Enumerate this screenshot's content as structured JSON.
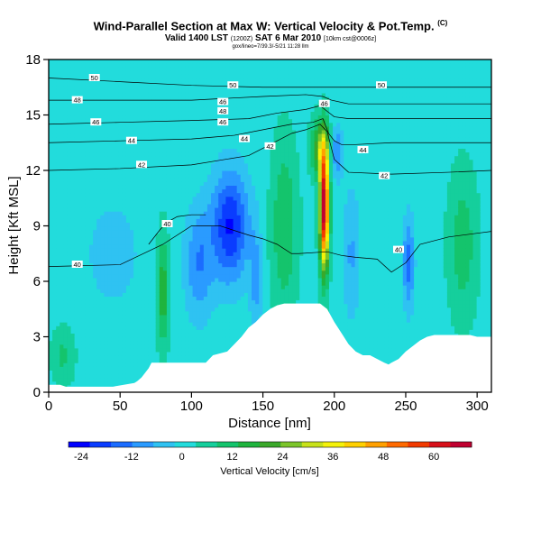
{
  "header": {
    "title": "Wind-Parallel Section at Max W: Vertical Velocity & Pot.Temp.",
    "title_mark": "(C)",
    "subtitle": "Valid 1400 LST",
    "subtitle_small": "(1200Z)",
    "subtitle_date": "SAT 6 Mar 2010",
    "subtitle_run": "[10km cst@0006z]",
    "info_line": "gox/lineo=7/39.3/-5/21 11:28 llm"
  },
  "chart_data": {
    "type": "heatmap",
    "title": "Wind-Parallel Section at Max W: Vertical Velocity & Pot.Temp.",
    "xlabel": "Distance [nm]",
    "ylabel": "Height [Kft MSL]",
    "xlim": [
      0,
      310
    ],
    "ylim": [
      0,
      18
    ],
    "x_ticks": [
      0,
      50,
      100,
      150,
      200,
      250,
      300
    ],
    "y_ticks": [
      0,
      3,
      6,
      9,
      12,
      15,
      18
    ],
    "grid": false,
    "colorbar": {
      "label": "Vertical Velocity [cm/s]",
      "placement": "bottom",
      "min": -27,
      "max": 69,
      "tick_values": [
        -24,
        -12,
        0,
        12,
        24,
        36,
        48,
        60
      ],
      "colors": [
        "#0000ff",
        "#0a3cff",
        "#1b6cff",
        "#2a9bff",
        "#2fc2f2",
        "#22dcdc",
        "#15cf9c",
        "#14c46c",
        "#1fb43e",
        "#3aa82a",
        "#7cc52a",
        "#c8e21a",
        "#f5f20a",
        "#ffd000",
        "#ffa000",
        "#ff6a00",
        "#f23a00",
        "#d8101a",
        "#c00030"
      ]
    },
    "terrain_profile": {
      "x": [
        0,
        8,
        12,
        20,
        25,
        40,
        45,
        60,
        62,
        65,
        68,
        70,
        72,
        90,
        100,
        110,
        115,
        125,
        130,
        135,
        140,
        145,
        150,
        155,
        160,
        165,
        170,
        175,
        180,
        185,
        190,
        195,
        200,
        205,
        210,
        215,
        220,
        225,
        230,
        235,
        238,
        240,
        245,
        250,
        255,
        260,
        265,
        270,
        275,
        280,
        285,
        290,
        295,
        300,
        305,
        310
      ],
      "height": [
        0.4,
        0.4,
        0.3,
        0.3,
        0.3,
        0.3,
        0.3,
        0.5,
        0.6,
        0.8,
        1.1,
        1.3,
        1.6,
        1.6,
        1.6,
        1.6,
        2.0,
        2.2,
        2.6,
        3.0,
        3.5,
        3.8,
        4.2,
        4.5,
        4.7,
        4.8,
        4.8,
        4.8,
        4.8,
        4.8,
        4.8,
        4.5,
        3.8,
        3.2,
        2.6,
        2.2,
        2.0,
        2.0,
        1.8,
        1.6,
        1.5,
        1.6,
        1.8,
        2.2,
        2.5,
        2.8,
        3.0,
        3.1,
        3.1,
        3.1,
        3.1,
        3.1,
        3.1,
        3.0,
        3.0,
        3.0
      ]
    },
    "velocity_features": [
      {
        "x": 193,
        "z": 10.0,
        "w": 68,
        "sx": 3.2,
        "sz": 3.2
      },
      {
        "x": 190,
        "z": 13.2,
        "w": 22,
        "sx": 6,
        "sz": 1.5
      },
      {
        "x": 202,
        "z": 13.0,
        "w": -14,
        "sx": 4,
        "sz": 1.4
      },
      {
        "x": 127,
        "z": 9.0,
        "w": -24,
        "sx": 13,
        "sz": 3.0
      },
      {
        "x": 105,
        "z": 7.0,
        "w": -13,
        "sx": 10,
        "sz": 3.0
      },
      {
        "x": 165,
        "z": 9.0,
        "w": 12,
        "sx": 9,
        "sz": 4.5
      },
      {
        "x": 80,
        "z": 5.5,
        "w": 16,
        "sx": 4,
        "sz": 3.0
      },
      {
        "x": 145,
        "z": 6.0,
        "w": -10,
        "sx": 4,
        "sz": 3.0
      },
      {
        "x": 212,
        "z": 7.5,
        "w": -9,
        "sx": 6,
        "sz": 3.5
      },
      {
        "x": 252,
        "z": 7.0,
        "w": -16,
        "sx": 4,
        "sz": 2.5
      },
      {
        "x": 290,
        "z": 8.0,
        "w": 10,
        "sx": 10,
        "sz": 4.0
      },
      {
        "x": 45,
        "z": 7.5,
        "w": -6,
        "sx": 20,
        "sz": 3.0
      },
      {
        "x": 10,
        "z": 2.0,
        "w": 8,
        "sx": 8,
        "sz": 1.5
      }
    ],
    "theta_contours": [
      {
        "label": "40",
        "label_x": 20,
        "label_y": 6.9,
        "x": [
          0,
          50,
          80,
          100,
          120,
          140,
          150,
          160,
          170,
          175,
          195,
          205,
          215,
          230,
          240,
          250,
          260,
          280,
          300,
          310
        ],
        "height": [
          6.8,
          6.9,
          8.0,
          9.0,
          9.0,
          8.5,
          8.3,
          8.0,
          7.5,
          7.5,
          7.6,
          7.4,
          7.3,
          7.2,
          6.5,
          7.0,
          8.0,
          8.4,
          8.6,
          8.7
        ]
      },
      {
        "label": "40",
        "label_x": 83,
        "label_y": 9.1,
        "x": [
          70,
          78,
          83,
          90,
          100,
          110
        ],
        "height": [
          8.0,
          8.8,
          9.2,
          9.5,
          9.6,
          9.6
        ]
      },
      {
        "label": "42",
        "label_x": 65,
        "label_y": 12.3,
        "x": [
          0,
          50,
          100,
          140,
          150,
          160,
          170,
          180,
          190,
          195,
          200,
          210,
          240,
          280,
          310
        ],
        "height": [
          12.0,
          12.1,
          12.3,
          12.8,
          13.2,
          13.6,
          14.0,
          14.2,
          14.5,
          14.1,
          12.6,
          11.9,
          11.8,
          11.9,
          12.0
        ]
      },
      {
        "label": "44",
        "label_x": 58,
        "label_y": 13.6,
        "x": [
          0,
          50,
          100,
          130,
          150,
          170,
          185,
          192,
          196,
          200,
          205,
          215,
          240,
          280,
          310
        ],
        "height": [
          13.5,
          13.6,
          13.7,
          13.9,
          14.2,
          14.5,
          14.6,
          14.8,
          14.0,
          13.6,
          13.4,
          13.4,
          13.5,
          13.5,
          13.5
        ]
      },
      {
        "label": "46",
        "label_x": 33,
        "label_y": 14.6,
        "x": [
          0,
          50,
          100,
          140,
          160,
          180,
          190,
          195,
          200,
          210,
          240,
          280,
          310
        ],
        "height": [
          14.5,
          14.6,
          14.7,
          14.8,
          15.1,
          15.3,
          15.5,
          15.2,
          14.9,
          14.8,
          14.8,
          14.8,
          14.8
        ]
      },
      {
        "label": "48",
        "label_x": 20,
        "label_y": 15.8,
        "x": [
          0,
          50,
          100,
          150,
          180,
          192,
          198,
          210,
          240,
          280,
          310
        ],
        "height": [
          15.8,
          15.8,
          15.8,
          16.0,
          16.1,
          16.0,
          15.8,
          15.6,
          15.6,
          15.6,
          15.6
        ]
      },
      {
        "label": "50",
        "label_x": 32,
        "label_y": 17.0,
        "x": [
          0,
          50,
          100,
          150,
          200,
          250,
          310
        ],
        "height": [
          17.0,
          16.8,
          16.6,
          16.5,
          16.5,
          16.5,
          16.5
        ]
      },
      {
        "label": "46",
        "label_x": 122,
        "label_y": 15.7,
        "x": [],
        "height": []
      },
      {
        "label": "46",
        "label_x": 122,
        "label_y": 14.6,
        "x": [],
        "height": []
      },
      {
        "label": "50",
        "label_x": 129,
        "label_y": 16.6,
        "x": [],
        "height": []
      },
      {
        "label": "48",
        "label_x": 122,
        "label_y": 15.2,
        "x": [],
        "height": []
      },
      {
        "label": "44",
        "label_x": 137,
        "label_y": 13.7,
        "x": [],
        "height": []
      },
      {
        "label": "42",
        "label_x": 155,
        "label_y": 13.3,
        "x": [],
        "height": []
      },
      {
        "label": "46",
        "label_x": 193,
        "label_y": 15.6,
        "x": [],
        "height": []
      },
      {
        "label": "44",
        "label_x": 220,
        "label_y": 13.1,
        "x": [],
        "height": []
      },
      {
        "label": "42",
        "label_x": 235,
        "label_y": 11.7,
        "x": [],
        "height": []
      },
      {
        "label": "50",
        "label_x": 233,
        "label_y": 16.6,
        "x": [],
        "height": []
      },
      {
        "label": "40",
        "label_x": 245,
        "label_y": 7.7,
        "x": [],
        "height": []
      }
    ]
  }
}
